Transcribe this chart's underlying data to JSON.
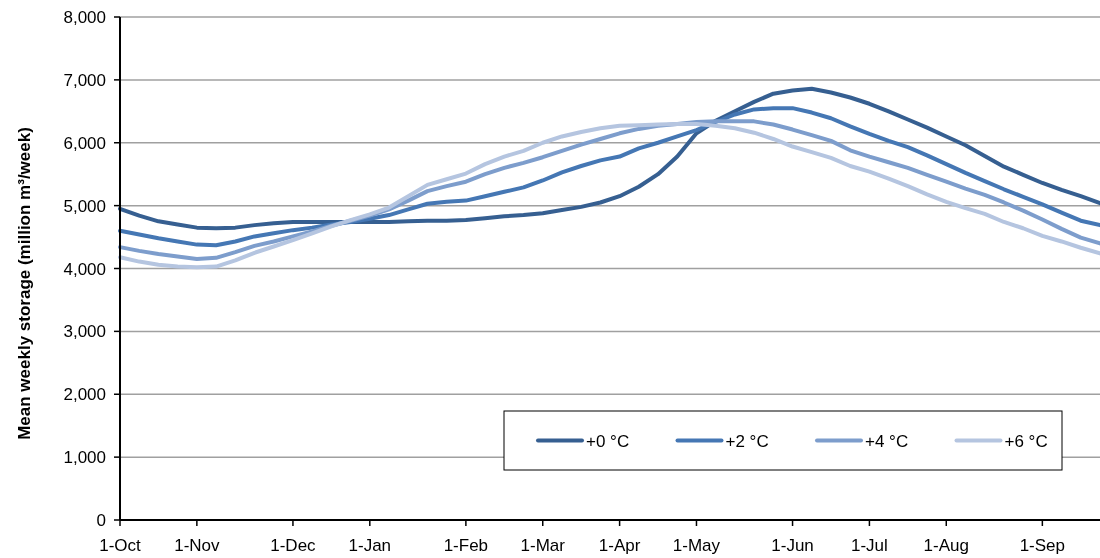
{
  "chart_data": {
    "type": "line",
    "ylabel": "Mean weekly storage (million m³/week)",
    "categories": [
      "1-Oct",
      null,
      null,
      null,
      "1-Nov",
      null,
      null,
      null,
      null,
      "1-Dec",
      null,
      null,
      null,
      "1-Jan",
      null,
      null,
      null,
      null,
      "1-Feb",
      null,
      null,
      null,
      "1-Mar",
      null,
      null,
      null,
      "1-Apr",
      null,
      null,
      null,
      "1-May",
      null,
      null,
      null,
      null,
      "1-Jun",
      null,
      null,
      null,
      "1-Jul",
      null,
      null,
      null,
      "1-Aug",
      null,
      null,
      null,
      null,
      "1-Sep",
      null,
      null,
      null
    ],
    "ylim": [
      0,
      8000
    ],
    "yticks": [
      0,
      {
        "value": 1000,
        "label": "1,000"
      },
      {
        "value": 2000,
        "label": "2,000"
      },
      {
        "value": 3000,
        "label": "3,000"
      },
      {
        "value": 4000,
        "label": "4,000"
      },
      {
        "value": 5000,
        "label": "5,000"
      },
      {
        "value": 6000,
        "label": "6,000"
      },
      {
        "value": 7000,
        "label": "7,000"
      },
      {
        "value": 8000,
        "label": "8,000"
      }
    ],
    "grid": "y",
    "legend": "bottom right",
    "marker": "none",
    "line_style": "solid",
    "series": [
      {
        "name": "+0 °C",
        "color": "#365f91",
        "values": [
          4950,
          4840,
          4750,
          4700,
          4650,
          4640,
          4650,
          4690,
          4720,
          4740,
          4740,
          4740,
          4740,
          4740,
          4740,
          4750,
          4760,
          4760,
          4770,
          4800,
          4830,
          4850,
          4880,
          4930,
          4980,
          5050,
          5150,
          5300,
          5500,
          5780,
          6150,
          6350,
          6500,
          6650,
          6780,
          6830,
          6860,
          6800,
          6720,
          6620,
          6500,
          6370,
          6240,
          6100,
          5960,
          5790,
          5620,
          5490,
          5360,
          5250,
          5150,
          5040
        ]
      },
      {
        "name": "+2 °C",
        "color": "#4577b4",
        "values": [
          4600,
          4540,
          4480,
          4430,
          4380,
          4370,
          4430,
          4510,
          4560,
          4610,
          4650,
          4700,
          4740,
          4790,
          4850,
          4940,
          5030,
          5060,
          5080,
          5150,
          5220,
          5290,
          5400,
          5530,
          5630,
          5720,
          5780,
          5910,
          6000,
          6100,
          6200,
          6330,
          6450,
          6530,
          6550,
          6550,
          6480,
          6390,
          6260,
          6140,
          6030,
          5930,
          5800,
          5660,
          5520,
          5390,
          5260,
          5140,
          5020,
          4890,
          4760,
          4690
        ]
      },
      {
        "name": "+4 °C",
        "color": "#7d9dcc",
        "values": [
          4340,
          4280,
          4230,
          4190,
          4150,
          4170,
          4260,
          4360,
          4430,
          4510,
          4590,
          4680,
          4760,
          4840,
          4940,
          5080,
          5230,
          5310,
          5380,
          5500,
          5600,
          5680,
          5770,
          5870,
          5970,
          6060,
          6150,
          6220,
          6270,
          6300,
          6330,
          6340,
          6340,
          6340,
          6290,
          6210,
          6120,
          6030,
          5880,
          5780,
          5690,
          5600,
          5490,
          5380,
          5270,
          5170,
          5050,
          4920,
          4780,
          4630,
          4490,
          4400
        ]
      },
      {
        "name": "+6 °C",
        "color": "#b5c5e0",
        "values": [
          4180,
          4110,
          4060,
          4030,
          4020,
          4030,
          4130,
          4250,
          4350,
          4450,
          4560,
          4670,
          4770,
          4860,
          4970,
          5150,
          5330,
          5420,
          5510,
          5660,
          5780,
          5870,
          6000,
          6100,
          6170,
          6230,
          6270,
          6280,
          6290,
          6300,
          6300,
          6270,
          6230,
          6160,
          6060,
          5940,
          5850,
          5760,
          5630,
          5540,
          5430,
          5310,
          5180,
          5060,
          4960,
          4870,
          4740,
          4640,
          4520,
          4430,
          4330,
          4240
        ]
      }
    ]
  }
}
